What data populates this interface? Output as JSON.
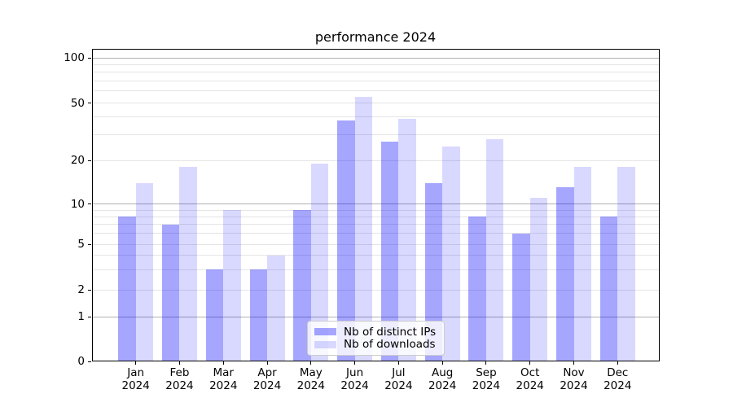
{
  "chart_data": {
    "type": "bar",
    "title": "performance 2024",
    "categories": [
      "Jan 2024",
      "Feb 2024",
      "Mar 2024",
      "Apr 2024",
      "May 2024",
      "Jun 2024",
      "Jul 2024",
      "Aug 2024",
      "Sep 2024",
      "Oct 2024",
      "Nov 2024",
      "Dec 2024"
    ],
    "series": [
      {
        "name": "Nb of distinct IPs",
        "color": "#0000FF59",
        "values": [
          8,
          7,
          3,
          3,
          9,
          38,
          27,
          14,
          8,
          6,
          13,
          8
        ]
      },
      {
        "name": "Nb of downloads",
        "color": "#0000FF26",
        "values": [
          14,
          18,
          9,
          4,
          19,
          55,
          39,
          25,
          28,
          11,
          18,
          18
        ]
      }
    ],
    "xlabel": "",
    "ylabel": "",
    "yticks": [
      0,
      1,
      2,
      5,
      10,
      20,
      50,
      100
    ],
    "yscale": "symlog",
    "ylim": [
      0,
      115
    ],
    "grid": "horizontal, major + log minors",
    "legend_position": "lower center",
    "colors": {
      "major_grid": "#b0b0b0",
      "minor_grid": "#e4e4e4",
      "spine": "#000000",
      "text": "#000000",
      "background": "#ffffff"
    }
  }
}
